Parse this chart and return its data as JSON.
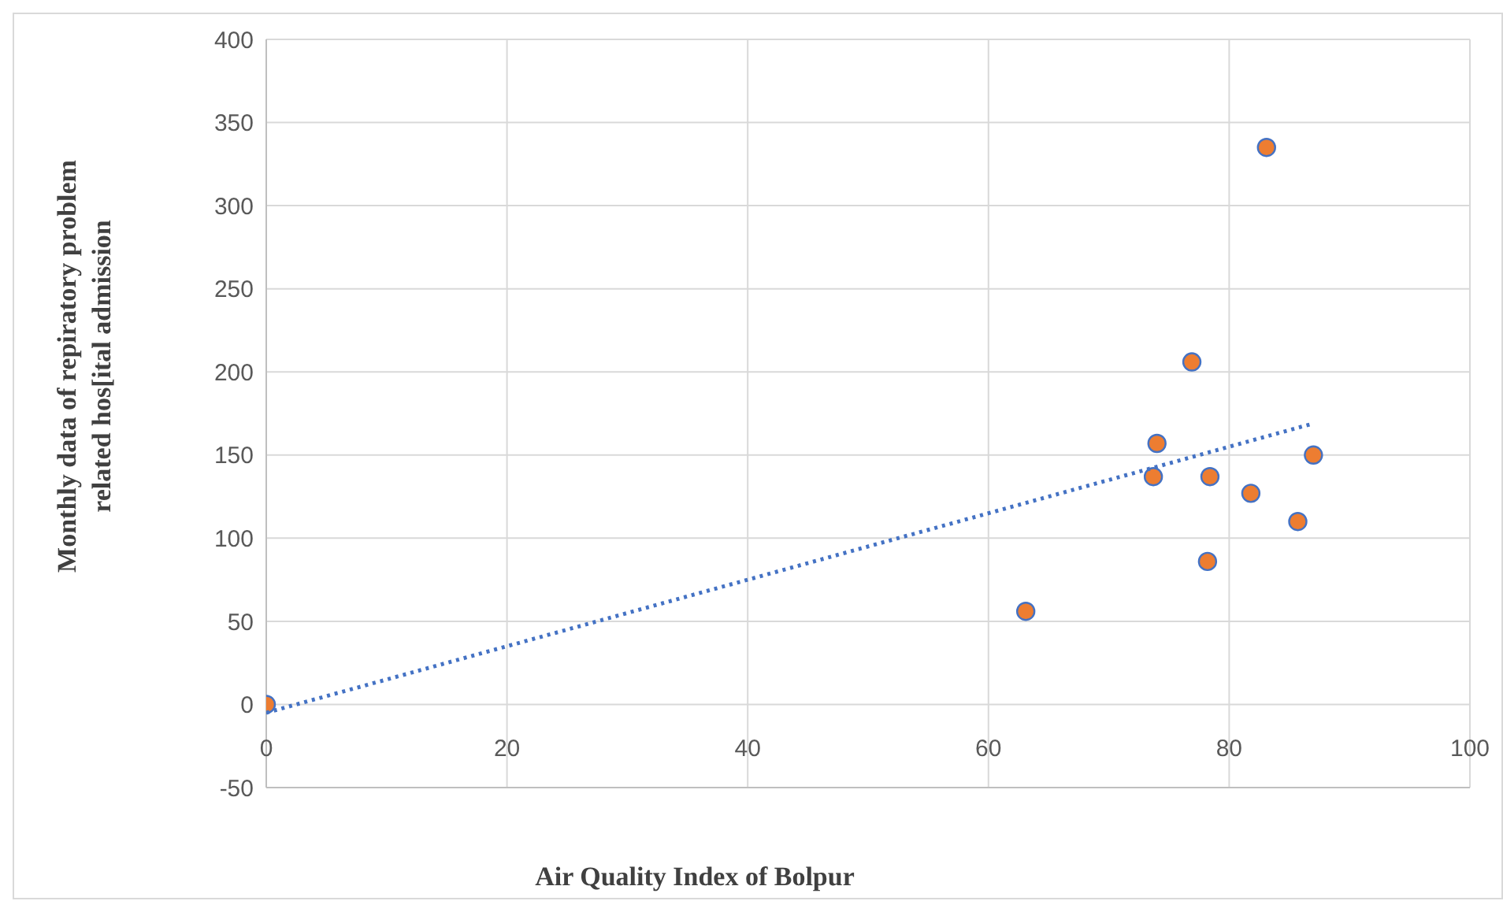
{
  "chart_data": {
    "type": "scatter",
    "xlabel": "Air Quality Index  of Bolpur",
    "ylabel": "Monthly data of repiratory problem related hos[ital admission",
    "xlim": [
      0,
      100
    ],
    "xticks": [
      0,
      20,
      40,
      60,
      80,
      100
    ],
    "ylim": [
      -50,
      400
    ],
    "yticks": [
      -50,
      0,
      50,
      100,
      150,
      200,
      250,
      300,
      350,
      400
    ],
    "grid": true,
    "marker": "circle",
    "series": [
      {
        "color": "#ed7d31",
        "x": [
          0,
          63.1,
          74,
          73.7,
          76.9,
          78.4,
          78.2,
          81.8,
          83.1,
          85.7,
          87
        ],
        "values": [
          0,
          56,
          157,
          137,
          206,
          137,
          86,
          127,
          335,
          110,
          150
        ]
      },
      {
        "type": "line",
        "color": "#4472c4",
        "line_style": "dotted",
        "marker": "none",
        "x": [
          0,
          87
        ],
        "values": [
          -5,
          169
        ]
      }
    ]
  }
}
